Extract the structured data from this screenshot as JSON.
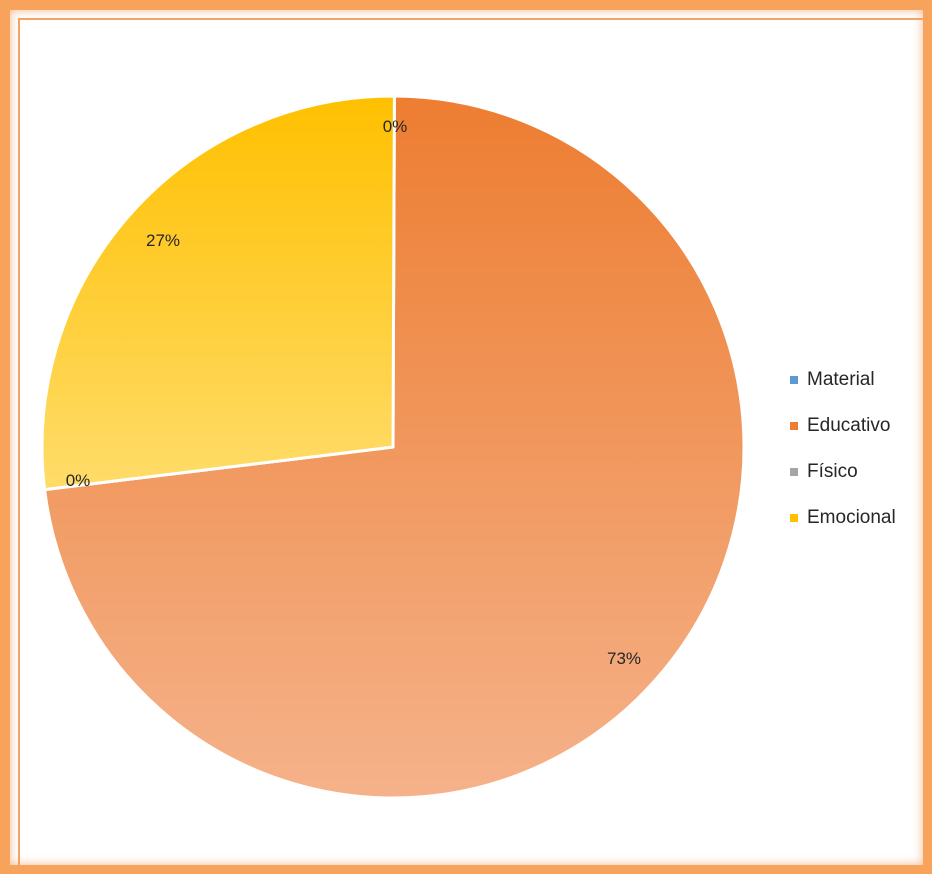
{
  "chart_data": {
    "type": "pie",
    "title": "",
    "categories": [
      "Material",
      "Educativo",
      "Físico",
      "Emocional"
    ],
    "values": [
      0,
      73,
      0,
      27
    ],
    "labels": [
      "0%",
      "73%",
      "0%",
      "27%"
    ],
    "colors": [
      "#5b9bd5",
      "#ed7d31",
      "#a5a5a5",
      "#ffc000"
    ],
    "legend_position": "right",
    "start_angle": "12 o'clock",
    "direction": "clockwise"
  }
}
